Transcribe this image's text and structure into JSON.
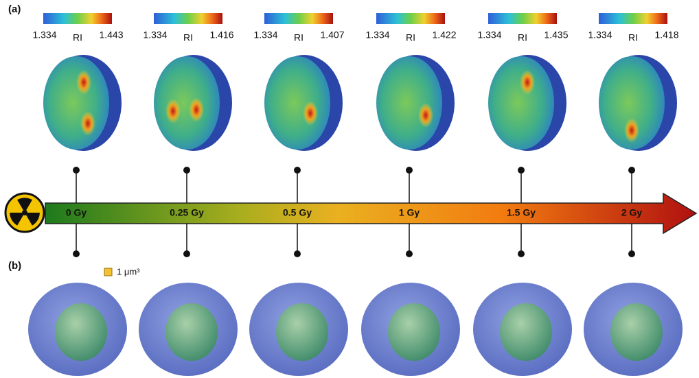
{
  "panels": [
    {
      "label": "(a)"
    },
    {
      "label": "(b)"
    }
  ],
  "colorbars": [
    {
      "min": 1.334,
      "label": "RI",
      "max": 1.443
    },
    {
      "min": 1.334,
      "label": "RI",
      "max": 1.416
    },
    {
      "min": 1.334,
      "label": "RI",
      "max": 1.407
    },
    {
      "min": 1.334,
      "label": "RI",
      "max": 1.422
    },
    {
      "min": 1.334,
      "label": "RI",
      "max": 1.435
    },
    {
      "min": 1.334,
      "label": "RI",
      "max": 1.418
    }
  ],
  "doses": [
    "0 Gy",
    "0.25 Gy",
    "0.5 Gy",
    "1 Gy",
    "1.5 Gy",
    "2 Gy"
  ],
  "scale_bar": "1 μm³"
}
